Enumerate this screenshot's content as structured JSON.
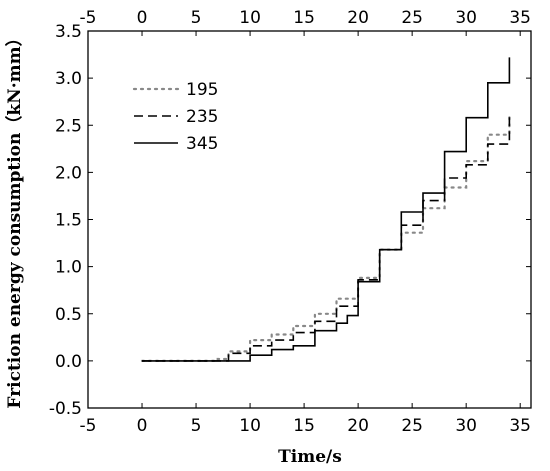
{
  "chart_data": {
    "type": "line",
    "xlabel": "Time/s",
    "ylabel": "Friction energy consumption（kN·mm）",
    "xlim": [
      -5,
      36
    ],
    "ylim": [
      -0.5,
      3.5
    ],
    "xticks": [
      "-5",
      "0",
      "5",
      "10",
      "15",
      "20",
      "25",
      "30",
      "35"
    ],
    "yticks": [
      "-0.5",
      "0.0",
      "0.5",
      "1.0",
      "1.5",
      "2.0",
      "2.5",
      "3.0",
      "3.5"
    ],
    "top_axis_ticks": true,
    "grid": false,
    "legend_position": "top-left",
    "series": [
      {
        "name": "195",
        "style": "dotted",
        "color": "#888888",
        "x": [
          0,
          7,
          7,
          8,
          8,
          10,
          10,
          12,
          12,
          14,
          14,
          16,
          16,
          18,
          18,
          20,
          20,
          22,
          22,
          24,
          24,
          26,
          26,
          28,
          28,
          30,
          30,
          32,
          32,
          34,
          34
        ],
        "y": [
          0,
          0,
          0.02,
          0.02,
          0.1,
          0.1,
          0.22,
          0.22,
          0.28,
          0.28,
          0.37,
          0.37,
          0.5,
          0.5,
          0.66,
          0.66,
          0.88,
          0.88,
          1.18,
          1.18,
          1.36,
          1.36,
          1.62,
          1.62,
          1.84,
          1.84,
          2.12,
          2.12,
          2.4,
          2.4,
          2.6
        ]
      },
      {
        "name": "235",
        "style": "dashed",
        "color": "#000000",
        "x": [
          0,
          8,
          8,
          10,
          10,
          12,
          12,
          14,
          14,
          16,
          16,
          18,
          18,
          20,
          20,
          22,
          22,
          24,
          24,
          26,
          26,
          28,
          28,
          30,
          30,
          32,
          32,
          34,
          34
        ],
        "y": [
          0,
          0,
          0.08,
          0.08,
          0.16,
          0.16,
          0.22,
          0.22,
          0.3,
          0.3,
          0.42,
          0.42,
          0.58,
          0.58,
          0.86,
          0.86,
          1.18,
          1.18,
          1.44,
          1.44,
          1.7,
          1.7,
          1.94,
          1.94,
          2.08,
          2.08,
          2.3,
          2.3,
          2.6
        ]
      },
      {
        "name": "345",
        "style": "solid",
        "color": "#000000",
        "x": [
          0,
          10,
          10,
          12,
          12,
          14,
          14,
          16,
          16,
          18,
          18,
          19,
          19,
          20,
          20,
          22,
          22,
          24,
          24,
          26,
          26,
          28,
          28,
          30,
          30,
          32,
          32,
          34,
          34
        ],
        "y": [
          0,
          0,
          0.06,
          0.06,
          0.12,
          0.12,
          0.16,
          0.16,
          0.32,
          0.32,
          0.4,
          0.4,
          0.48,
          0.48,
          0.84,
          0.84,
          1.18,
          1.18,
          1.58,
          1.58,
          1.78,
          1.78,
          2.22,
          2.22,
          2.58,
          2.58,
          2.95,
          2.95,
          3.22
        ]
      }
    ]
  }
}
